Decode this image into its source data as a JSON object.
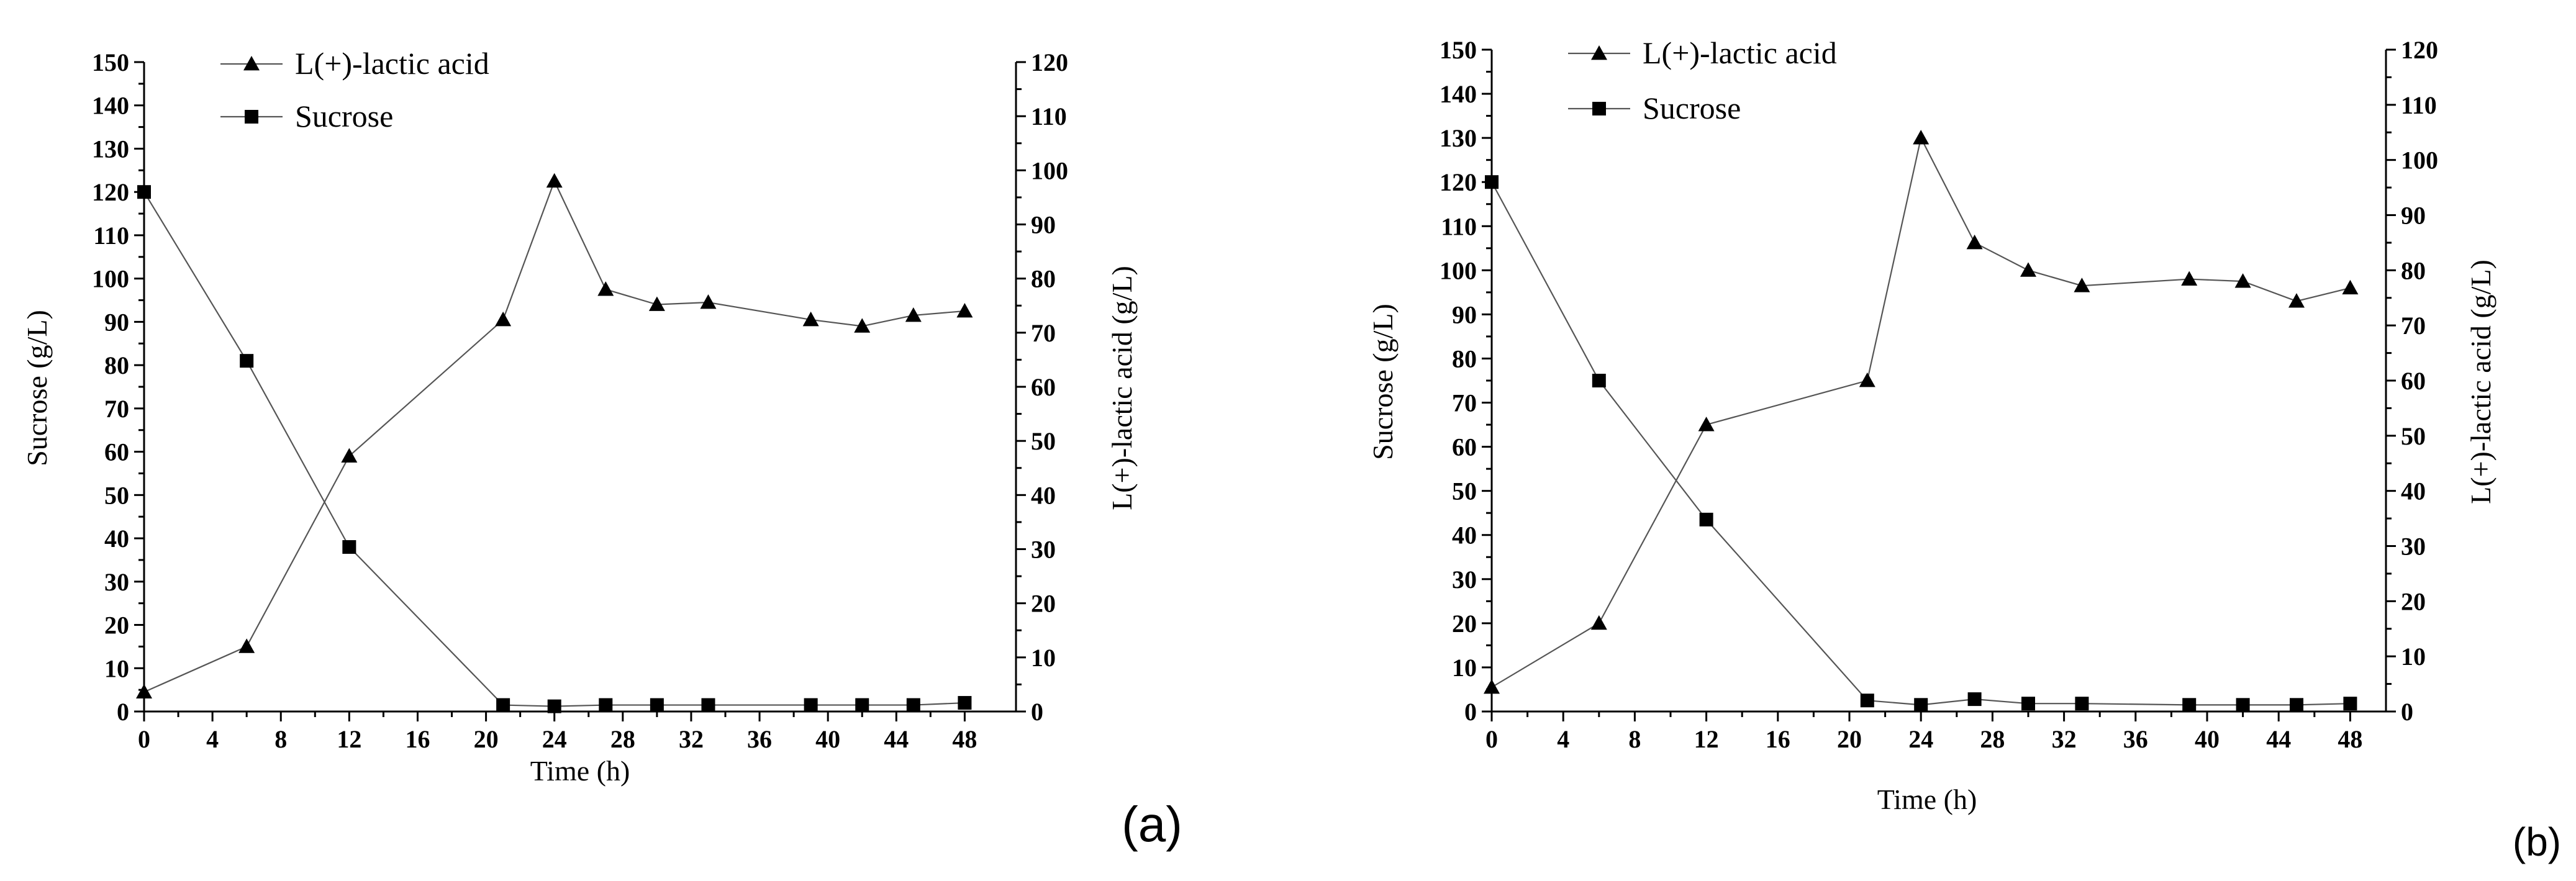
{
  "colors": {
    "axis": "#000000",
    "line": "#555555",
    "marker": "#000000",
    "background": "#ffffff"
  },
  "chart_data": [
    {
      "type": "line",
      "panel_label": "(a)",
      "xlabel": "Time (h)",
      "ylabel_left": "Sucrose (g/L)",
      "ylabel_right": "L(+)-lactic acid (g/L)",
      "xlim": [
        0,
        51
      ],
      "xticks": [
        0,
        4,
        8,
        12,
        16,
        20,
        24,
        28,
        32,
        36,
        40,
        44,
        48
      ],
      "ylim_left": [
        0,
        150
      ],
      "yticks_left": [
        0,
        10,
        20,
        30,
        40,
        50,
        60,
        70,
        80,
        90,
        100,
        110,
        120,
        130,
        140,
        150
      ],
      "ylim_right": [
        0,
        120
      ],
      "yticks_right": [
        0,
        10,
        20,
        30,
        40,
        50,
        60,
        70,
        80,
        90,
        100,
        110,
        120
      ],
      "legend_placement": "top-left",
      "series": [
        {
          "name": "L(+)-lactic acid",
          "marker": "triangle",
          "axis": "right",
          "x": [
            0,
            6,
            12,
            21,
            24,
            27,
            30,
            33,
            39,
            42,
            45,
            48
          ],
          "y": [
            3.6,
            12,
            47.2,
            72.4,
            98,
            78,
            75.2,
            75.6,
            72.4,
            71.2,
            73.2,
            74
          ]
        },
        {
          "name": "Sucrose",
          "marker": "square",
          "axis": "left",
          "x": [
            0,
            6,
            12,
            21,
            24,
            27,
            30,
            33,
            39,
            42,
            45,
            48
          ],
          "y": [
            120,
            81,
            38,
            1.5,
            1.2,
            1.5,
            1.5,
            1.5,
            1.5,
            1.5,
            1.5,
            2
          ]
        }
      ]
    },
    {
      "type": "line",
      "panel_label": "(b)",
      "xlabel": "Time (h)",
      "ylabel_left": "Sucrose (g/L)",
      "ylabel_right": "L(+)-lactic acid (g/L)",
      "xlim": [
        0,
        50
      ],
      "xticks": [
        0,
        4,
        8,
        12,
        16,
        20,
        24,
        28,
        32,
        36,
        40,
        44,
        48
      ],
      "ylim_left": [
        0,
        150
      ],
      "yticks_left": [
        0,
        10,
        20,
        30,
        40,
        50,
        60,
        70,
        80,
        90,
        100,
        110,
        120,
        130,
        140,
        150
      ],
      "ylim_right": [
        0,
        120
      ],
      "yticks_right": [
        0,
        10,
        20,
        30,
        40,
        50,
        60,
        70,
        80,
        90,
        100,
        110,
        120
      ],
      "legend_placement": "top-left",
      "series": [
        {
          "name": "L(+)-lactic acid",
          "marker": "triangle",
          "axis": "right",
          "x": [
            0,
            6,
            12,
            21,
            24,
            27,
            30,
            33,
            39,
            42,
            45,
            48
          ],
          "y": [
            4.4,
            16,
            52,
            60,
            104,
            85,
            80,
            77.2,
            78.4,
            78,
            74.4,
            76.8
          ]
        },
        {
          "name": "Sucrose",
          "marker": "square",
          "axis": "left",
          "x": [
            0,
            6,
            12,
            21,
            24,
            27,
            30,
            33,
            39,
            42,
            45,
            48
          ],
          "y": [
            120,
            75,
            43.5,
            2.5,
            1.5,
            2.8,
            1.8,
            1.8,
            1.5,
            1.5,
            1.5,
            1.8
          ]
        }
      ]
    }
  ]
}
